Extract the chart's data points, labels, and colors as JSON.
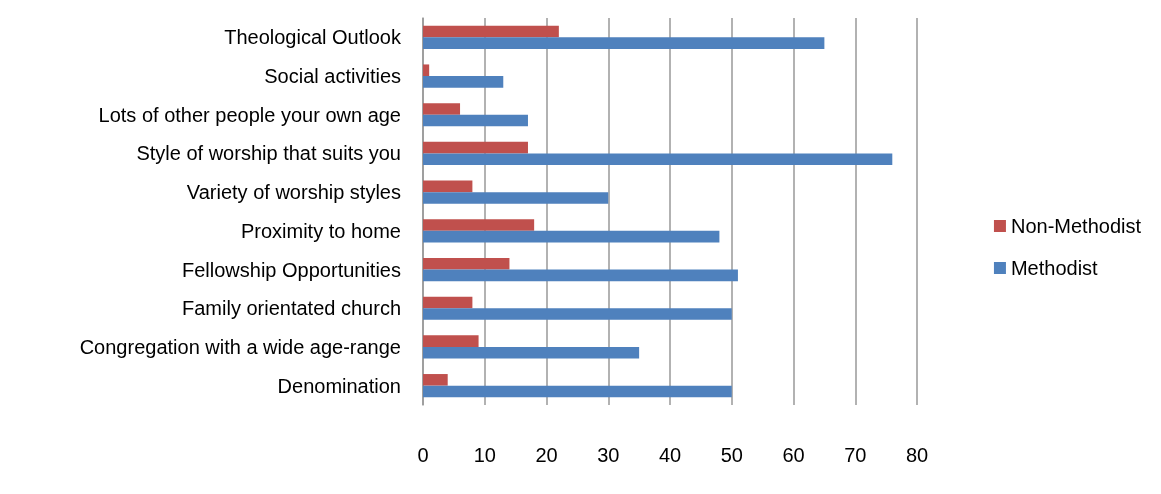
{
  "chart_data": {
    "type": "bar",
    "orientation": "horizontal",
    "categories": [
      "Theological Outlook",
      "Social activities",
      "Lots of other people your own age",
      "Style of worship that suits you",
      "Variety of worship styles",
      "Proximity to home",
      "Fellowship Opportunities",
      "Family orientated church",
      "Congregation with a wide age-range",
      "Denomination"
    ],
    "series": [
      {
        "name": "Non-Methodist",
        "color": "#c0504d",
        "values": [
          22,
          1,
          6,
          17,
          8,
          18,
          14,
          8,
          9,
          4
        ]
      },
      {
        "name": "Methodist",
        "color": "#4f81bd",
        "values": [
          65,
          13,
          17,
          76,
          30,
          48,
          51,
          50,
          35,
          50
        ]
      }
    ],
    "xlim": [
      0,
      80
    ],
    "xticks": [
      0,
      10,
      20,
      30,
      40,
      50,
      60,
      70,
      80
    ],
    "grid": "x",
    "legend": "right"
  }
}
